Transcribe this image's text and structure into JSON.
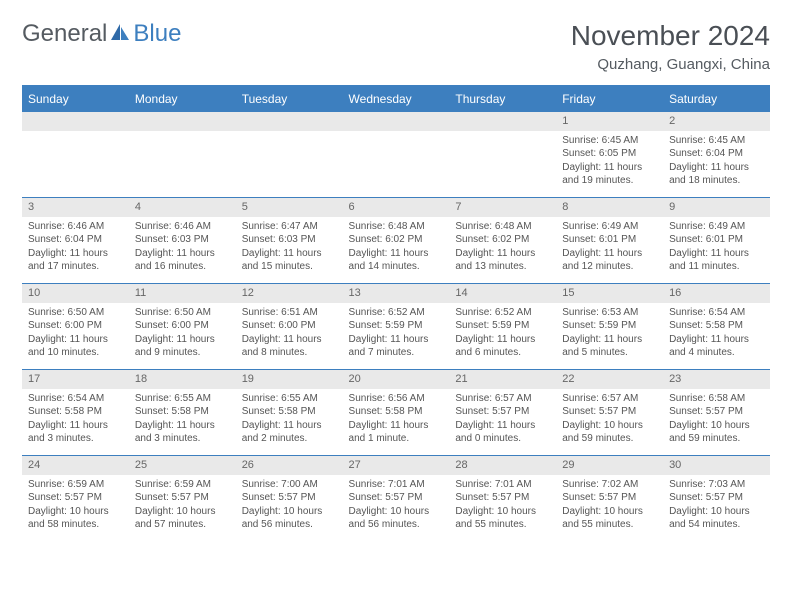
{
  "brand": {
    "p1": "General",
    "p2": "Blue"
  },
  "title": "November 2024",
  "location": "Quzhang, Guangxi, China",
  "colors": {
    "accent": "#3d7fbf",
    "header_bg": "#3d7fbf",
    "daynum_bg": "#e9e9e9",
    "text": "#555b61"
  },
  "weekdays": [
    "Sunday",
    "Monday",
    "Tuesday",
    "Wednesday",
    "Thursday",
    "Friday",
    "Saturday"
  ],
  "weeks": [
    [
      {
        "n": "",
        "lines": []
      },
      {
        "n": "",
        "lines": []
      },
      {
        "n": "",
        "lines": []
      },
      {
        "n": "",
        "lines": []
      },
      {
        "n": "",
        "lines": []
      },
      {
        "n": "1",
        "lines": [
          "Sunrise: 6:45 AM",
          "Sunset: 6:05 PM",
          "Daylight: 11 hours and 19 minutes."
        ]
      },
      {
        "n": "2",
        "lines": [
          "Sunrise: 6:45 AM",
          "Sunset: 6:04 PM",
          "Daylight: 11 hours and 18 minutes."
        ]
      }
    ],
    [
      {
        "n": "3",
        "lines": [
          "Sunrise: 6:46 AM",
          "Sunset: 6:04 PM",
          "Daylight: 11 hours and 17 minutes."
        ]
      },
      {
        "n": "4",
        "lines": [
          "Sunrise: 6:46 AM",
          "Sunset: 6:03 PM",
          "Daylight: 11 hours and 16 minutes."
        ]
      },
      {
        "n": "5",
        "lines": [
          "Sunrise: 6:47 AM",
          "Sunset: 6:03 PM",
          "Daylight: 11 hours and 15 minutes."
        ]
      },
      {
        "n": "6",
        "lines": [
          "Sunrise: 6:48 AM",
          "Sunset: 6:02 PM",
          "Daylight: 11 hours and 14 minutes."
        ]
      },
      {
        "n": "7",
        "lines": [
          "Sunrise: 6:48 AM",
          "Sunset: 6:02 PM",
          "Daylight: 11 hours and 13 minutes."
        ]
      },
      {
        "n": "8",
        "lines": [
          "Sunrise: 6:49 AM",
          "Sunset: 6:01 PM",
          "Daylight: 11 hours and 12 minutes."
        ]
      },
      {
        "n": "9",
        "lines": [
          "Sunrise: 6:49 AM",
          "Sunset: 6:01 PM",
          "Daylight: 11 hours and 11 minutes."
        ]
      }
    ],
    [
      {
        "n": "10",
        "lines": [
          "Sunrise: 6:50 AM",
          "Sunset: 6:00 PM",
          "Daylight: 11 hours and 10 minutes."
        ]
      },
      {
        "n": "11",
        "lines": [
          "Sunrise: 6:50 AM",
          "Sunset: 6:00 PM",
          "Daylight: 11 hours and 9 minutes."
        ]
      },
      {
        "n": "12",
        "lines": [
          "Sunrise: 6:51 AM",
          "Sunset: 6:00 PM",
          "Daylight: 11 hours and 8 minutes."
        ]
      },
      {
        "n": "13",
        "lines": [
          "Sunrise: 6:52 AM",
          "Sunset: 5:59 PM",
          "Daylight: 11 hours and 7 minutes."
        ]
      },
      {
        "n": "14",
        "lines": [
          "Sunrise: 6:52 AM",
          "Sunset: 5:59 PM",
          "Daylight: 11 hours and 6 minutes."
        ]
      },
      {
        "n": "15",
        "lines": [
          "Sunrise: 6:53 AM",
          "Sunset: 5:59 PM",
          "Daylight: 11 hours and 5 minutes."
        ]
      },
      {
        "n": "16",
        "lines": [
          "Sunrise: 6:54 AM",
          "Sunset: 5:58 PM",
          "Daylight: 11 hours and 4 minutes."
        ]
      }
    ],
    [
      {
        "n": "17",
        "lines": [
          "Sunrise: 6:54 AM",
          "Sunset: 5:58 PM",
          "Daylight: 11 hours and 3 minutes."
        ]
      },
      {
        "n": "18",
        "lines": [
          "Sunrise: 6:55 AM",
          "Sunset: 5:58 PM",
          "Daylight: 11 hours and 3 minutes."
        ]
      },
      {
        "n": "19",
        "lines": [
          "Sunrise: 6:55 AM",
          "Sunset: 5:58 PM",
          "Daylight: 11 hours and 2 minutes."
        ]
      },
      {
        "n": "20",
        "lines": [
          "Sunrise: 6:56 AM",
          "Sunset: 5:58 PM",
          "Daylight: 11 hours and 1 minute."
        ]
      },
      {
        "n": "21",
        "lines": [
          "Sunrise: 6:57 AM",
          "Sunset: 5:57 PM",
          "Daylight: 11 hours and 0 minutes."
        ]
      },
      {
        "n": "22",
        "lines": [
          "Sunrise: 6:57 AM",
          "Sunset: 5:57 PM",
          "Daylight: 10 hours and 59 minutes."
        ]
      },
      {
        "n": "23",
        "lines": [
          "Sunrise: 6:58 AM",
          "Sunset: 5:57 PM",
          "Daylight: 10 hours and 59 minutes."
        ]
      }
    ],
    [
      {
        "n": "24",
        "lines": [
          "Sunrise: 6:59 AM",
          "Sunset: 5:57 PM",
          "Daylight: 10 hours and 58 minutes."
        ]
      },
      {
        "n": "25",
        "lines": [
          "Sunrise: 6:59 AM",
          "Sunset: 5:57 PM",
          "Daylight: 10 hours and 57 minutes."
        ]
      },
      {
        "n": "26",
        "lines": [
          "Sunrise: 7:00 AM",
          "Sunset: 5:57 PM",
          "Daylight: 10 hours and 56 minutes."
        ]
      },
      {
        "n": "27",
        "lines": [
          "Sunrise: 7:01 AM",
          "Sunset: 5:57 PM",
          "Daylight: 10 hours and 56 minutes."
        ]
      },
      {
        "n": "28",
        "lines": [
          "Sunrise: 7:01 AM",
          "Sunset: 5:57 PM",
          "Daylight: 10 hours and 55 minutes."
        ]
      },
      {
        "n": "29",
        "lines": [
          "Sunrise: 7:02 AM",
          "Sunset: 5:57 PM",
          "Daylight: 10 hours and 55 minutes."
        ]
      },
      {
        "n": "30",
        "lines": [
          "Sunrise: 7:03 AM",
          "Sunset: 5:57 PM",
          "Daylight: 10 hours and 54 minutes."
        ]
      }
    ]
  ]
}
